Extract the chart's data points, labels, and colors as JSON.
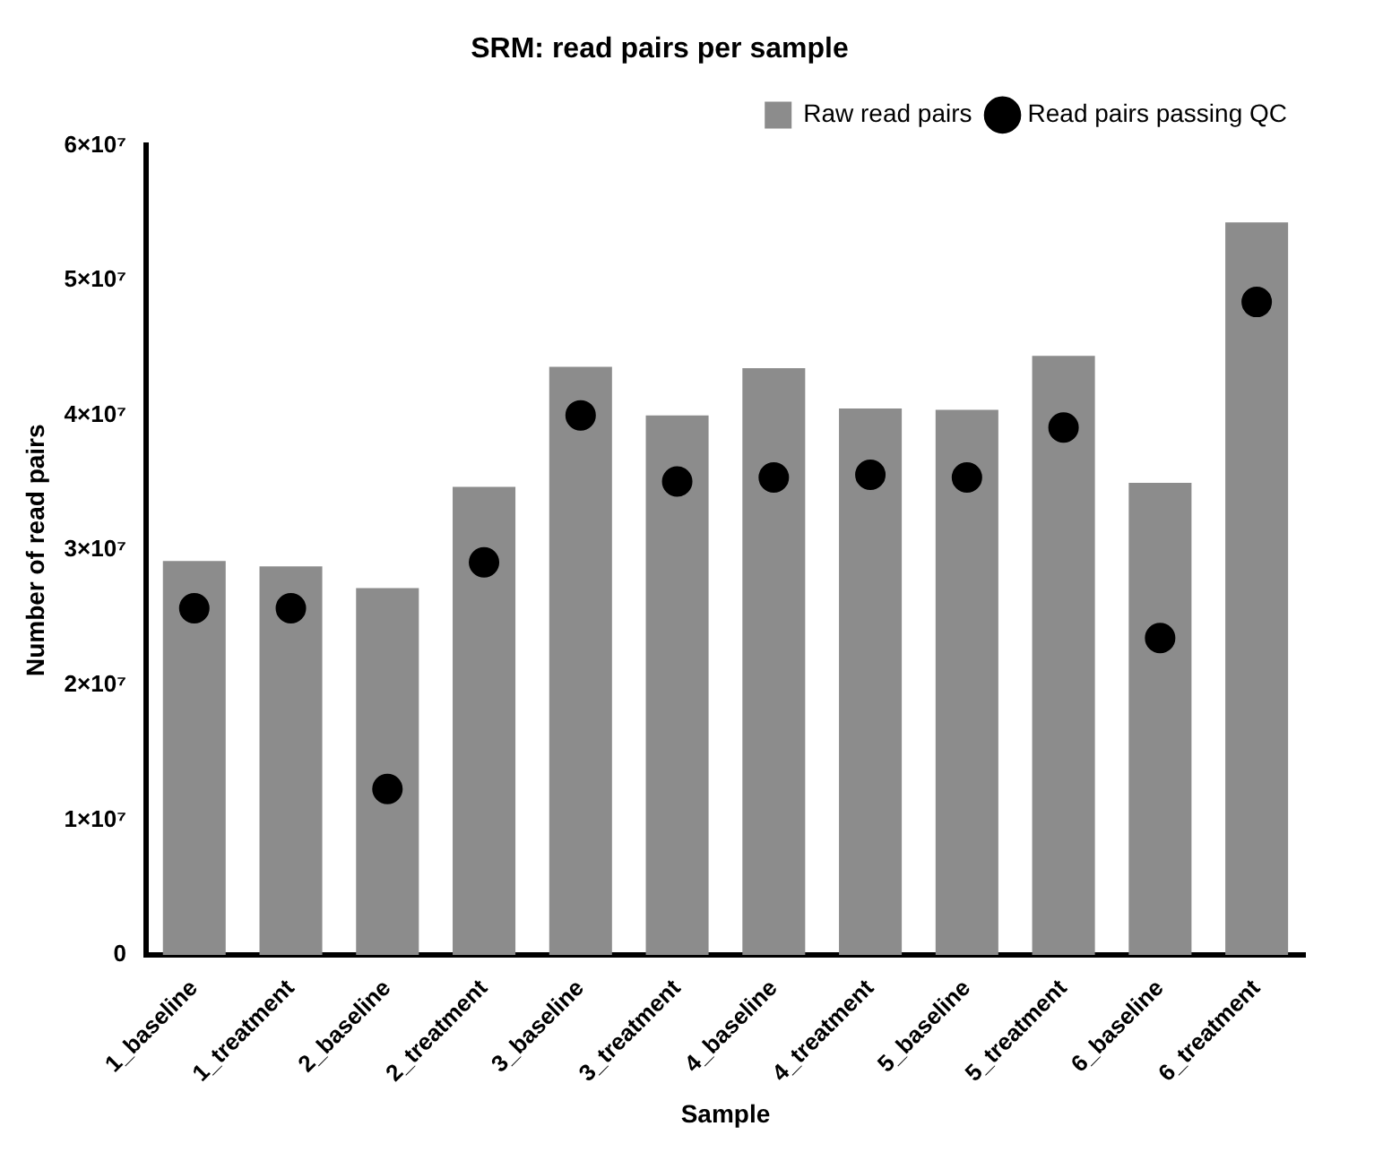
{
  "chart_data": {
    "type": "bar",
    "title": "SRM: read pairs per sample",
    "xlabel": "Sample",
    "ylabel": "Number of read pairs",
    "categories": [
      "1_baseline",
      "1_treatment",
      "2_baseline",
      "2_treatment",
      "3_baseline",
      "3_treatment",
      "4_baseline",
      "4_treatment",
      "5_baseline",
      "5_treatment",
      "6_baseline",
      "6_treatment"
    ],
    "series": [
      {
        "name": "Raw read pairs",
        "color": "#8c8c8c",
        "values": [
          29200000,
          28800000,
          27200000,
          34700000,
          43600000,
          40000000,
          43500000,
          40500000,
          40400000,
          44400000,
          35000000,
          54300000
        ]
      },
      {
        "name": "Read pairs passing QC",
        "type": "scatter",
        "color": "#000000",
        "values": [
          25700000,
          25700000,
          12300000,
          29100000,
          40000000,
          35100000,
          35400000,
          35600000,
          35400000,
          39100000,
          23500000,
          48400000
        ]
      }
    ],
    "ylim": [
      0,
      60000000
    ],
    "yticks": [
      0,
      {
        "value": 10000000,
        "label": "1×10⁷"
      },
      {
        "value": 20000000,
        "label": "2×10⁷"
      },
      {
        "value": 30000000,
        "label": "3×10⁷"
      },
      {
        "value": 40000000,
        "label": "4×10⁷"
      },
      {
        "value": 50000000,
        "label": "5×10⁷"
      },
      {
        "value": 60000000,
        "label": "6×10⁷"
      }
    ],
    "grid": false,
    "legend": "top right",
    "marker": "circle"
  }
}
